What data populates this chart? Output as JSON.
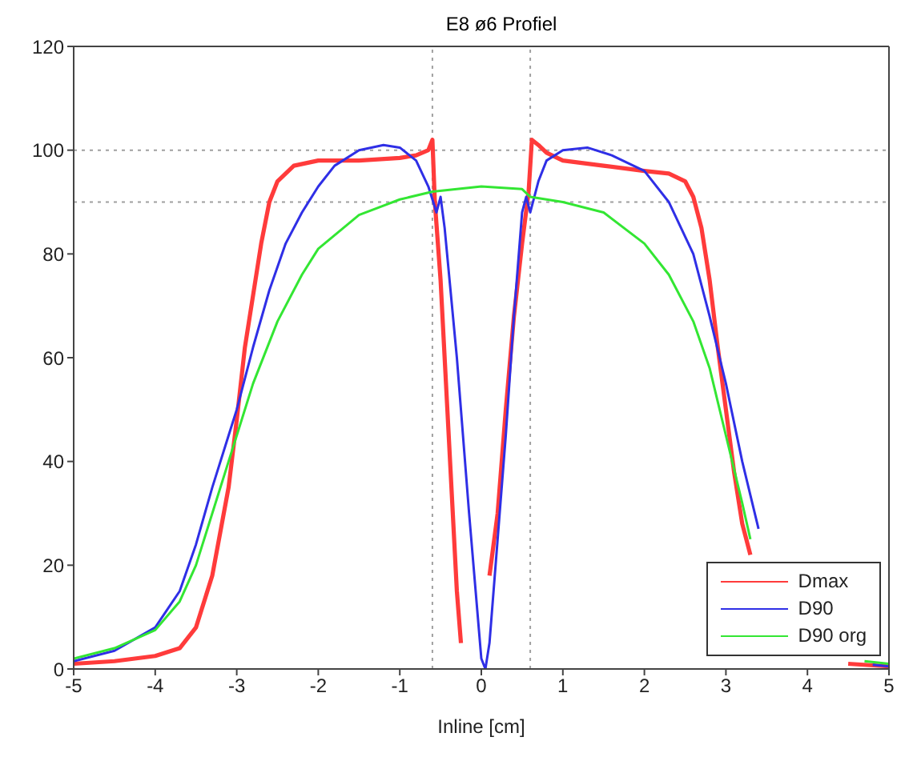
{
  "chart_data": {
    "type": "line",
    "title": "E8 ø6 Profiel",
    "xlabel": "Inline [cm]",
    "xlim": [
      -5,
      5
    ],
    "xticks": [
      -5,
      -4,
      -3,
      -2,
      -1,
      0,
      1,
      2,
      3,
      4,
      5
    ],
    "ylim": [
      0,
      120
    ],
    "yticks": [
      0,
      20,
      40,
      60,
      80,
      100,
      120
    ],
    "legend": "bottom right",
    "line_style": "solid",
    "ref_lines": [
      {
        "axis": "x",
        "value": -0.6,
        "color": "#a0a0a0",
        "line_style": "dotted"
      },
      {
        "axis": "x",
        "value": 0.6,
        "color": "#a0a0a0",
        "line_style": "dotted"
      },
      {
        "axis": "y",
        "value": 100,
        "color": "#a0a0a0",
        "line_style": "dotted"
      },
      {
        "axis": "y",
        "value": 90,
        "color": "#a0a0a0",
        "line_style": "dotted"
      }
    ],
    "series": [
      {
        "name": "Dmax",
        "color": "#ff3b3b",
        "x": [
          -5,
          -4.5,
          -4,
          -3.7,
          -3.5,
          -3.3,
          -3.1,
          -3,
          -2.9,
          -2.7,
          -2.6,
          -2.5,
          -2.3,
          -2,
          -1.5,
          -1,
          -0.8,
          -0.65,
          -0.6,
          -0.57,
          -0.5,
          -0.4,
          -0.3,
          -0.25,
          -0.1,
          0.1,
          0.2,
          0.3,
          0.4,
          0.5,
          0.58,
          0.62,
          0.7,
          0.8,
          1,
          1.5,
          2,
          2.3,
          2.5,
          2.6,
          2.7,
          2.8,
          2.9,
          3,
          3.1,
          3.2,
          3.3,
          4,
          4.5,
          5
        ],
        "values": [
          1,
          1.5,
          2.5,
          4,
          8,
          18,
          35,
          48,
          62,
          82,
          90,
          94,
          97,
          98,
          98,
          98.5,
          99,
          100,
          102,
          90,
          75,
          45,
          15,
          5,
          null,
          18,
          30,
          50,
          68,
          82,
          92,
          102,
          101,
          99.5,
          98,
          97,
          96,
          95.5,
          94,
          91,
          85,
          75,
          62,
          50,
          38,
          28,
          22,
          null,
          1,
          0.5
        ]
      },
      {
        "name": "D90",
        "color": "#2f2fe6",
        "x": [
          -5,
          -4.5,
          -4,
          -3.7,
          -3.5,
          -3.3,
          -3.1,
          -3,
          -2.8,
          -2.6,
          -2.4,
          -2.2,
          -2,
          -1.8,
          -1.5,
          -1.2,
          -1,
          -0.8,
          -0.65,
          -0.55,
          -0.5,
          -0.45,
          -0.3,
          -0.15,
          0,
          0.05,
          0.1,
          0.2,
          0.3,
          0.4,
          0.5,
          0.55,
          0.6,
          0.7,
          0.8,
          1,
          1.3,
          1.6,
          2,
          2.3,
          2.6,
          2.8,
          3,
          3.2,
          3.4,
          4,
          4.8,
          5
        ],
        "values": [
          1.5,
          3.5,
          8,
          15,
          24,
          35,
          45,
          50,
          62,
          73,
          82,
          88,
          93,
          97,
          100,
          101,
          100.5,
          98,
          93,
          88,
          91,
          85,
          60,
          30,
          2,
          0,
          5,
          25,
          45,
          68,
          88,
          91,
          88,
          94,
          98,
          100,
          100.5,
          99,
          96,
          90,
          80,
          68,
          55,
          40,
          27,
          null,
          0.8,
          0.5
        ]
      },
      {
        "name": "D90 org",
        "color": "#33e633",
        "x": [
          -5,
          -4.5,
          -4,
          -3.7,
          -3.5,
          -3.3,
          -3.1,
          -3,
          -2.8,
          -2.5,
          -2.2,
          -2,
          -1.5,
          -1,
          -0.6,
          0,
          0.5,
          0.6,
          1,
          1.5,
          2,
          2.3,
          2.6,
          2.8,
          3,
          3.2,
          3.3,
          4,
          4.7,
          5
        ],
        "values": [
          2,
          4,
          7.5,
          13,
          20,
          30,
          40,
          45,
          55,
          67,
          76,
          81,
          87.5,
          90.5,
          92,
          93,
          92.5,
          91,
          90,
          88,
          82,
          76,
          67,
          58,
          45,
          32,
          25,
          null,
          1.5,
          1
        ]
      }
    ]
  }
}
